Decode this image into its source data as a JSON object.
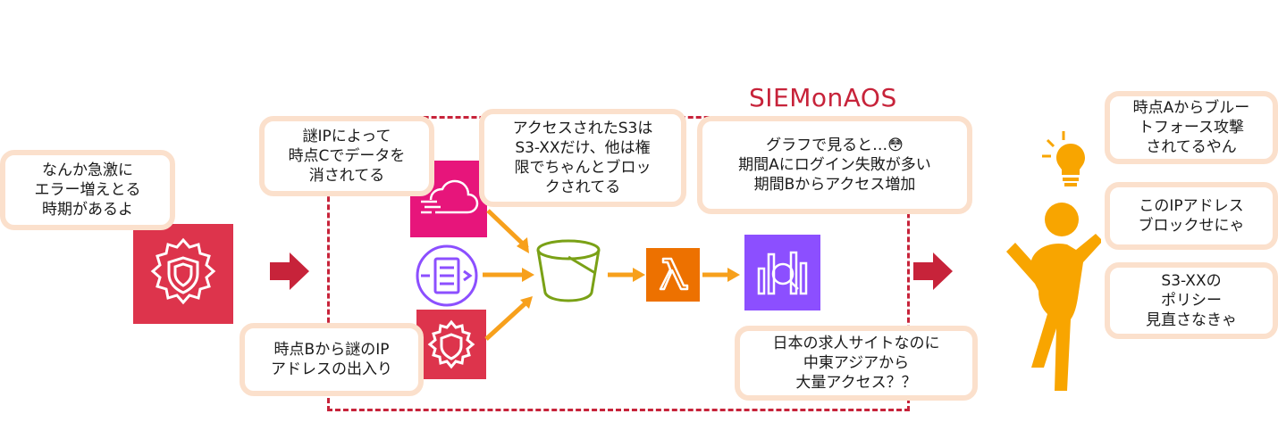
{
  "title": "SIEMonAOS",
  "bubbles": {
    "spike": "なんか急激に\nエラー増えとる\n時期があるよ",
    "mystery_ip_c": "謎IPによって\n時点Cでデータを\n消されてる",
    "s3_access": "アクセスされたS3は\nS3-XXだけ、他は権\n限でちゃんとブロッ\nクされてる",
    "graph": "グラフで見ると…😳\n期間Aにログイン失敗が多い\n期間Bからアクセス増加",
    "mystery_ip_b": "時点Bから謎のIP\nアドレスの出入り",
    "overseas": "日本の求人サイトなのに\n中東アジアから\n大量アクセス？？",
    "brute_force": "時点Aからブルー\nトフォース攻撃\nされてるやん",
    "block_ip": "このIPアドレス\nブロックせにゃ",
    "policy": "S3-XXの\nポリシー\n見直さなきゃ"
  },
  "icons": {
    "security_hub": "shield-gear-icon",
    "cloudtrail": "cloud-icon",
    "vpc_flow": "list-arrow-icon",
    "waf": "shield-gear-icon",
    "s3": "bucket-icon",
    "lambda": "lambda-icon",
    "opensearch": "search-chart-icon",
    "person": "person-icon",
    "bulb": "lightbulb-icon"
  },
  "colors": {
    "accent_red": "#c7233a",
    "security_red": "#dd344c",
    "pink": "#e7157b",
    "purple": "#8c4fff",
    "green": "#7aa116",
    "orange": "#ed7100",
    "person": "#f8a500",
    "bubble_border": "#fbe0cc"
  }
}
